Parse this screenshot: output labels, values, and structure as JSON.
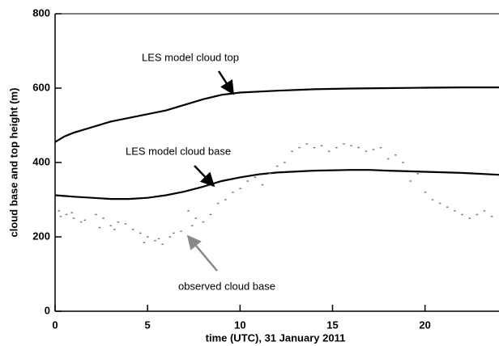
{
  "chart_data": {
    "type": "line",
    "xlabel": "time (UTC), 31 January 2011",
    "ylabel": "cloud base and top height (m)",
    "xlim": [
      0,
      24
    ],
    "ylim": [
      0,
      800
    ],
    "xticks": [
      0,
      5,
      10,
      15,
      20
    ],
    "yticks": [
      0,
      200,
      400,
      600,
      800
    ],
    "grid": false,
    "series": [
      {
        "name": "LES model cloud top",
        "color": "#000000",
        "type": "line",
        "x": [
          0,
          0.5,
          1,
          2,
          3,
          4,
          5,
          6,
          7,
          8,
          9,
          10,
          12,
          14,
          16,
          18,
          20,
          22,
          24
        ],
        "values": [
          455,
          470,
          480,
          495,
          510,
          520,
          530,
          540,
          555,
          570,
          582,
          588,
          593,
          597,
          599,
          600,
          601,
          602,
          602
        ]
      },
      {
        "name": "LES model cloud base",
        "color": "#000000",
        "type": "line",
        "x": [
          0,
          0.5,
          1,
          2,
          3,
          4,
          5,
          6,
          7,
          8,
          9,
          10,
          11,
          12,
          14,
          16,
          17,
          18,
          20,
          22,
          24
        ],
        "values": [
          312,
          310,
          308,
          305,
          302,
          302,
          305,
          312,
          322,
          335,
          350,
          360,
          368,
          373,
          378,
          380,
          380,
          378,
          375,
          372,
          367
        ]
      },
      {
        "name": "observed cloud base",
        "color": "#777777",
        "type": "scatter",
        "x": [
          0.2,
          0.6,
          1.0,
          1.4,
          0.3,
          0.9,
          1.6,
          2.2,
          2.6,
          3.0,
          3.4,
          3.8,
          2.4,
          3.2,
          4.2,
          4.6,
          5.0,
          5.4,
          5.8,
          6.2,
          4.8,
          5.6,
          6.4,
          6.8,
          7.2,
          7.6,
          8.0,
          8.4,
          7.4,
          8.8,
          9.2,
          9.6,
          10.0,
          10.4,
          10.8,
          11.2,
          11.6,
          12.0,
          12.4,
          12.8,
          13.2,
          13.6,
          14.0,
          14.4,
          14.8,
          15.2,
          15.6,
          16.0,
          16.4,
          16.8,
          17.2,
          17.6,
          18.0,
          18.4,
          18.8,
          19.2,
          19.6,
          20.0,
          20.4,
          20.8,
          21.2,
          21.6,
          22.0,
          22.4,
          22.8,
          23.2,
          23.6
        ],
        "values": [
          270,
          260,
          250,
          240,
          255,
          265,
          245,
          260,
          250,
          230,
          240,
          235,
          225,
          220,
          220,
          210,
          200,
          190,
          180,
          200,
          185,
          195,
          210,
          215,
          270,
          250,
          240,
          260,
          230,
          290,
          300,
          320,
          330,
          350,
          360,
          340,
          370,
          390,
          400,
          430,
          440,
          450,
          440,
          445,
          430,
          440,
          450,
          445,
          440,
          430,
          435,
          440,
          410,
          420,
          400,
          350,
          370,
          320,
          300,
          290,
          280,
          270,
          260,
          250,
          260,
          270,
          255
        ]
      }
    ]
  }
}
